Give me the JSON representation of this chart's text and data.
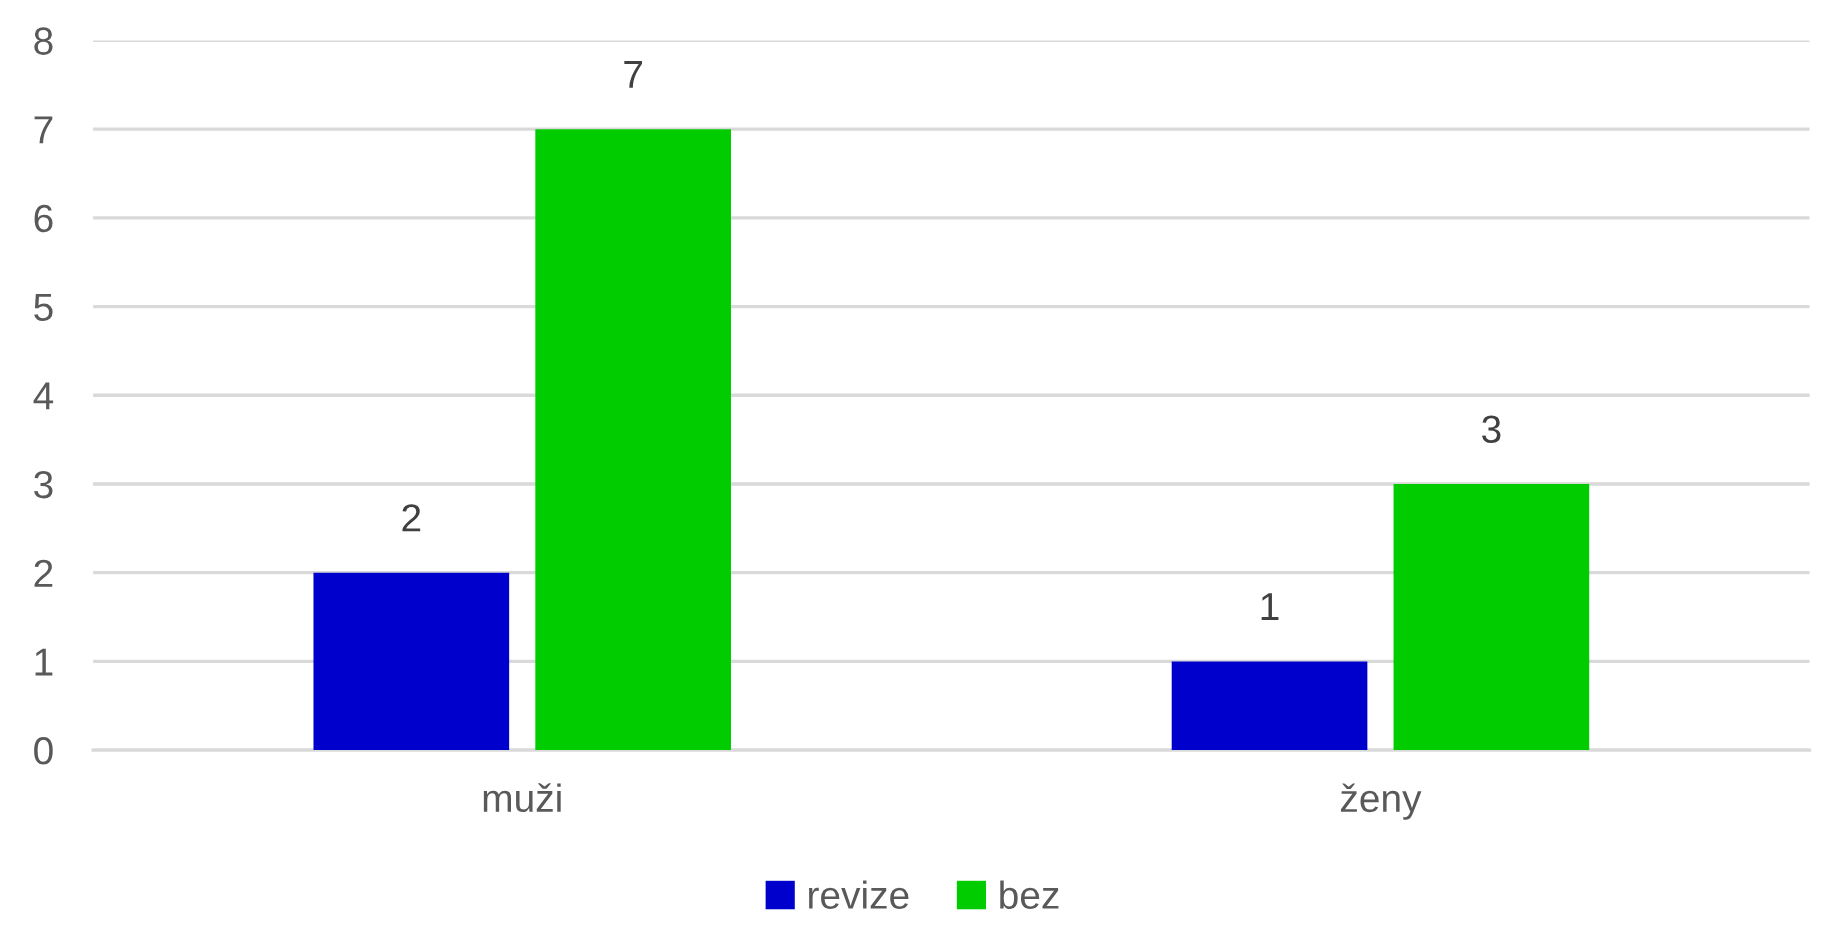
{
  "chart_data": {
    "type": "bar",
    "categories": [
      "muži",
      "ženy"
    ],
    "series": [
      {
        "name": "revize",
        "color": "#0000cc",
        "values": [
          2,
          1
        ]
      },
      {
        "name": "bez",
        "color": "#00cc00",
        "values": [
          7,
          3
        ]
      }
    ],
    "ylim": [
      0,
      8
    ],
    "yticks": [
      0,
      1,
      2,
      3,
      4,
      5,
      6,
      7,
      8
    ],
    "grid": "y",
    "legend": "bottom",
    "data_labels": true
  }
}
